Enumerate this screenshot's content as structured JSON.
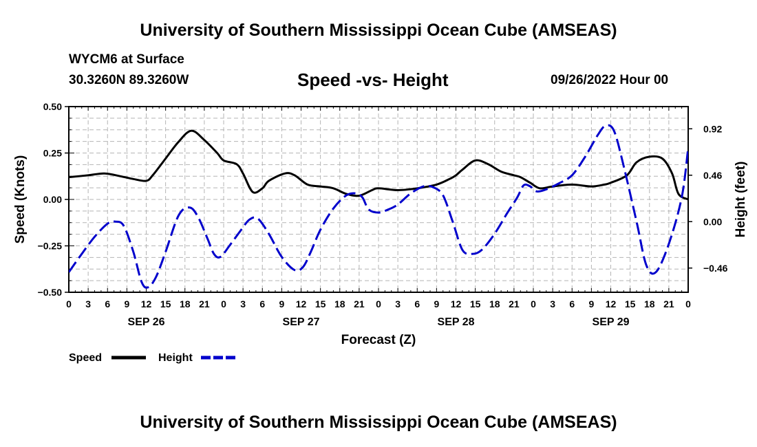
{
  "header": {
    "title": "University of Southern Mississippi Ocean Cube (AMSEAS)",
    "station": "WYCM6 at Surface",
    "coords": "30.3260N  89.3260W",
    "subtitle": "Speed -vs- Height",
    "datetime": "09/26/2022 Hour 00"
  },
  "footer": {
    "title": "University of Southern Mississippi Ocean Cube (AMSEAS)"
  },
  "chart_data": {
    "type": "line",
    "title": "Speed -vs- Height",
    "xlabel": "Forecast (Z)",
    "ylabel": "Speed (Knots)",
    "y2label": "Height (feet)",
    "x_unit": "forecast hours from 09/26/2022 00Z",
    "xlim": [
      0,
      96
    ],
    "ylim": [
      -0.5,
      0.5
    ],
    "y2lim": [
      -0.7,
      1.14
    ],
    "grid": true,
    "legend_position": "bottom-left",
    "x_tick_labels": [
      "0",
      "3",
      "6",
      "9",
      "12",
      "15",
      "18",
      "21",
      "0",
      "3",
      "6",
      "9",
      "12",
      "15",
      "18",
      "21",
      "0",
      "3",
      "6",
      "9",
      "12",
      "15",
      "18",
      "21",
      "0",
      "3",
      "6",
      "9",
      "12",
      "15",
      "18",
      "21",
      "0"
    ],
    "y_tick_labels": [
      "0.50",
      "0.25",
      "0.00",
      "−0.25",
      "−0.50"
    ],
    "y_tick_values": [
      0.5,
      0.25,
      0,
      -0.25,
      -0.5
    ],
    "y2_tick_labels": [
      "0.92",
      "0.46",
      "0.00",
      "−0.46"
    ],
    "y2_tick_values": [
      0.92,
      0.46,
      0,
      -0.46
    ],
    "date_labels": [
      {
        "text": "SEP 26",
        "hour": 12
      },
      {
        "text": "SEP 27",
        "hour": 36
      },
      {
        "text": "SEP 28",
        "hour": 60
      },
      {
        "text": "SEP 29",
        "hour": 84
      }
    ],
    "series": [
      {
        "name": "Speed",
        "axis": "left",
        "color": "#000000",
        "style": "solid",
        "x": [
          0,
          3,
          5.5,
          8,
          10,
          12,
          13,
          15,
          17,
          19,
          21,
          23,
          24,
          26,
          27,
          28.5,
          30,
          31,
          33.5,
          35,
          37,
          39,
          41,
          43,
          45,
          47,
          48,
          51,
          54,
          57,
          59,
          60,
          61,
          63,
          65,
          67,
          69,
          70,
          71.5,
          73,
          75,
          78,
          81,
          83,
          84,
          86.5,
          88,
          90,
          92,
          93.5,
          94.5,
          96
        ],
        "values": [
          0.12,
          0.13,
          0.14,
          0.125,
          0.11,
          0.1,
          0.13,
          0.22,
          0.31,
          0.37,
          0.32,
          0.25,
          0.21,
          0.19,
          0.14,
          0.04,
          0.06,
          0.1,
          0.14,
          0.13,
          0.08,
          0.07,
          0.06,
          0.03,
          0.02,
          0.05,
          0.06,
          0.05,
          0.06,
          0.08,
          0.11,
          0.13,
          0.16,
          0.21,
          0.19,
          0.15,
          0.13,
          0.12,
          0.09,
          0.06,
          0.07,
          0.08,
          0.07,
          0.08,
          0.09,
          0.13,
          0.2,
          0.23,
          0.22,
          0.14,
          0.03,
          0.0
        ]
      },
      {
        "name": "Height",
        "axis": "right",
        "color": "#0000cc",
        "style": "dashed",
        "x": [
          0,
          2,
          4,
          6,
          7.2,
          8.5,
          10,
          11.3,
          12.3,
          13.5,
          15,
          17,
          18.7,
          20,
          21.5,
          22.5,
          23.5,
          25,
          26.5,
          28,
          29.3,
          31,
          33,
          35,
          36.3,
          37.5,
          39,
          41,
          43,
          44.5,
          45.5,
          46.5,
          48,
          49.5,
          51,
          53,
          55,
          56.5,
          58,
          59.5,
          61,
          62.5,
          64,
          66,
          68,
          69.5,
          70.5,
          71.5,
          72.5,
          74,
          76,
          78,
          80,
          82,
          83.2,
          84.5,
          86,
          88,
          89.5,
          91,
          93,
          95,
          96
        ],
        "values": [
          -0.5,
          -0.32,
          -0.15,
          -0.02,
          0.0,
          -0.04,
          -0.3,
          -0.6,
          -0.65,
          -0.55,
          -0.3,
          0.06,
          0.14,
          0.05,
          -0.17,
          -0.32,
          -0.35,
          -0.23,
          -0.1,
          0.02,
          0.03,
          -0.12,
          -0.35,
          -0.48,
          -0.45,
          -0.3,
          -0.08,
          0.13,
          0.26,
          0.28,
          0.24,
          0.12,
          0.09,
          0.12,
          0.17,
          0.28,
          0.35,
          0.34,
          0.26,
          0.0,
          -0.28,
          -0.32,
          -0.28,
          -0.12,
          0.09,
          0.24,
          0.36,
          0.35,
          0.3,
          0.32,
          0.38,
          0.46,
          0.64,
          0.86,
          0.95,
          0.9,
          0.55,
          0.0,
          -0.43,
          -0.5,
          -0.22,
          0.24,
          0.73
        ]
      }
    ]
  }
}
